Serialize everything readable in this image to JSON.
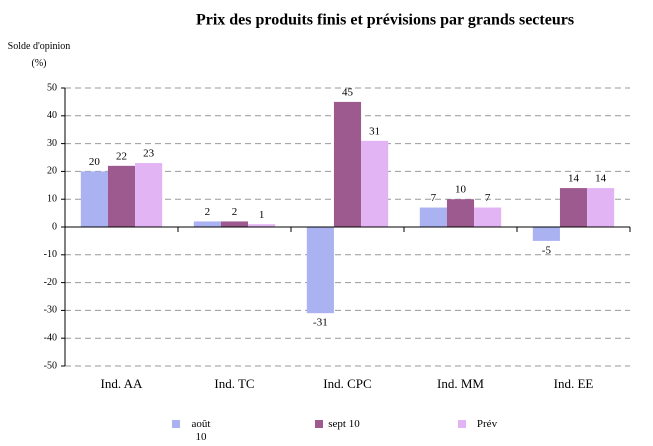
{
  "chart_data": {
    "type": "bar",
    "title": "Prix des produits finis et prévisions par grands secteurs",
    "y_label": "Solde d'opinion (%)",
    "categories": [
      "Ind. AA",
      "Ind. TC",
      "Ind. CPC",
      "Ind. MM",
      "Ind. EE"
    ],
    "series": [
      {
        "name": "août 10",
        "color": "#aab2f2",
        "values": [
          20,
          2,
          -31,
          7,
          -5
        ]
      },
      {
        "name": "sept 10",
        "color": "#9c5a8e",
        "values": [
          22,
          2,
          45,
          10,
          14
        ]
      },
      {
        "name": "Prév",
        "color": "#e2b4f4",
        "values": [
          23,
          1,
          31,
          7,
          14
        ]
      }
    ],
    "ylim": [
      -50,
      50
    ],
    "yticks": [
      -50,
      -40,
      -30,
      -20,
      -10,
      0,
      10,
      20,
      30,
      40,
      50
    ],
    "grid": true,
    "legend": "bottom"
  }
}
